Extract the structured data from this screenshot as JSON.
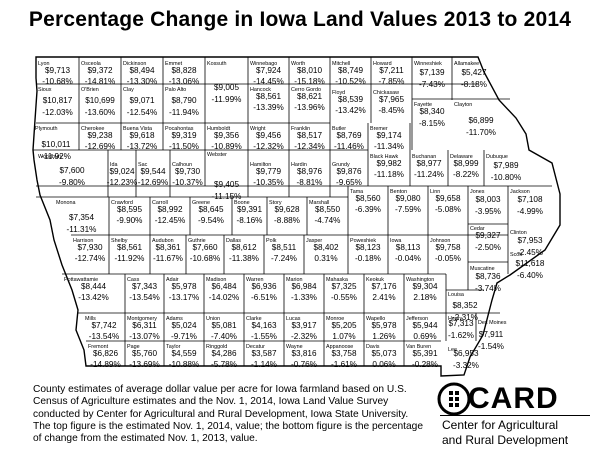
{
  "title": "Percentage Change in Iowa Land Values 2013 to 2014",
  "caption": "County estimates of average dollar value per acre for Iowa farmland based on U.S. Census of Agriculture estimates and the Nov. 1, 2014, Iowa Land Value Survey conducted by Center for Agricultural and Rural Development, Iowa State University. The top figure is the estimated Nov. 1, 2014, value; the bottom figure is the percentage of change from the estimated Nov. 1, 2013, value.",
  "logo": {
    "name": "CARD",
    "line1": "Center for Agricultural",
    "line2": "and Rural Development"
  },
  "counties": [
    {
      "name": "Lyon",
      "value": "$9,713",
      "change": "-10.68%"
    },
    {
      "name": "Osceola",
      "value": "$9,372",
      "change": "-14.81%"
    },
    {
      "name": "Dickinson",
      "value": "$8,494",
      "change": "-13.30%"
    },
    {
      "name": "Emmet",
      "value": "$8,828",
      "change": "-13.06%"
    },
    {
      "name": "Kossuth",
      "value": "$9,005",
      "change": "-11.99%"
    },
    {
      "name": "Winnebago",
      "value": "$7,924",
      "change": "-14.45%"
    },
    {
      "name": "Worth",
      "value": "$8,010",
      "change": "-15.18%"
    },
    {
      "name": "Mitchell",
      "value": "$8,749",
      "change": "-10.52%"
    },
    {
      "name": "Howard",
      "value": "$7,211",
      "change": "-7.85%"
    },
    {
      "name": "Winneshiek",
      "value": "$7,139",
      "change": "-7.43%"
    },
    {
      "name": "Allamakee",
      "value": "$5,427",
      "change": "-8.18%"
    },
    {
      "name": "Sioux",
      "value": "$10,817",
      "change": "-12.03%"
    },
    {
      "name": "O'Brien",
      "value": "$10,699",
      "change": "-13.60%"
    },
    {
      "name": "Clay",
      "value": "$9,071",
      "change": "-12.54%"
    },
    {
      "name": "Palo Alto",
      "value": "$8,790",
      "change": "-11.94%"
    },
    {
      "name": "Hancock",
      "value": "$8,561",
      "change": "-13.39%"
    },
    {
      "name": "Cerro Gordo",
      "value": "$8,621",
      "change": "-13.96%"
    },
    {
      "name": "Floyd",
      "value": "$8,539",
      "change": "-13.42%"
    },
    {
      "name": "Chickasaw",
      "value": "$7,965",
      "change": "-8.45%"
    },
    {
      "name": "Fayette",
      "value": "$8,340",
      "change": "-8.15%"
    },
    {
      "name": "Clayton",
      "value": "$6,899",
      "change": "-11.70%"
    },
    {
      "name": "Plymouth",
      "value": "$10,011",
      "change": "-11.92%"
    },
    {
      "name": "Cherokee",
      "value": "$9,238",
      "change": "-12.69%"
    },
    {
      "name": "Buena Vista",
      "value": "$9,618",
      "change": "-13.72%"
    },
    {
      "name": "Pocahontas",
      "value": "$9,319",
      "change": "-11.50%"
    },
    {
      "name": "Humboldt",
      "value": "$9,356",
      "change": "-10.89%"
    },
    {
      "name": "Wright",
      "value": "$9,456",
      "change": "-12.32%"
    },
    {
      "name": "Franklin",
      "value": "$8,517",
      "change": "-12.34%"
    },
    {
      "name": "Butler",
      "value": "$8,769",
      "change": "-11.46%"
    },
    {
      "name": "Bremer",
      "value": "$9,174",
      "change": "-11.34%"
    },
    {
      "name": "Black Hawk",
      "value": "$9,982",
      "change": "-11.18%"
    },
    {
      "name": "Buchanan",
      "value": "$8,977",
      "change": "-11.24%"
    },
    {
      "name": "Delaware",
      "value": "$8,999",
      "change": "-8.22%"
    },
    {
      "name": "Dubuque",
      "value": "$7,989",
      "change": "-10.80%"
    },
    {
      "name": "Woodbury",
      "value": "$7,600",
      "change": "-9.80%"
    },
    {
      "name": "Ida",
      "value": "$9,024",
      "change": "-12.23%"
    },
    {
      "name": "Sac",
      "value": "$9,544",
      "change": "-12.69%"
    },
    {
      "name": "Calhoun",
      "value": "$9,730",
      "change": "-10.37%"
    },
    {
      "name": "Webster",
      "value": "$9,405",
      "change": "-11.15%"
    },
    {
      "name": "Hamilton",
      "value": "$9,779",
      "change": "-10.35%"
    },
    {
      "name": "Hardin",
      "value": "$8,976",
      "change": "-8.81%"
    },
    {
      "name": "Grundy",
      "value": "$9,876",
      "change": "-9.65%"
    },
    {
      "name": "Monona",
      "value": "$7,354",
      "change": "-11.31%"
    },
    {
      "name": "Crawford",
      "value": "$8,595",
      "change": "-9.90%"
    },
    {
      "name": "Carroll",
      "value": "$8,992",
      "change": "-12.45%"
    },
    {
      "name": "Greene",
      "value": "$8,645",
      "change": "-9.54%"
    },
    {
      "name": "Boone",
      "value": "$9,391",
      "change": "-8.16%"
    },
    {
      "name": "Story",
      "value": "$9,628",
      "change": "-8.88%"
    },
    {
      "name": "Marshall",
      "value": "$8,550",
      "change": "-4.74%"
    },
    {
      "name": "Tama",
      "value": "$8,560",
      "change": "-6.39%"
    },
    {
      "name": "Benton",
      "value": "$9,080",
      "change": "-7.59%"
    },
    {
      "name": "Linn",
      "value": "$9,658",
      "change": "-5.08%"
    },
    {
      "name": "Jones",
      "value": "$8,003",
      "change": "-3.95%"
    },
    {
      "name": "Jackson",
      "value": "$7,108",
      "change": "-4.99%"
    },
    {
      "name": "Clinton",
      "value": "$7,953",
      "change": "-2.45%"
    },
    {
      "name": "Harrison",
      "value": "$7,930",
      "change": "-12.74%"
    },
    {
      "name": "Shelby",
      "value": "$8,561",
      "change": "-11.92%"
    },
    {
      "name": "Audubon",
      "value": "$8,361",
      "change": "-11.67%"
    },
    {
      "name": "Guthrie",
      "value": "$7,660",
      "change": "-10.68%"
    },
    {
      "name": "Dallas",
      "value": "$8,612",
      "change": "-11.38%"
    },
    {
      "name": "Polk",
      "value": "$8,511",
      "change": "-7.24%"
    },
    {
      "name": "Jasper",
      "value": "$8,402",
      "change": "0.31%"
    },
    {
      "name": "Poweshiek",
      "value": "$8,123",
      "change": "-0.18%"
    },
    {
      "name": "Iowa",
      "value": "$8,113",
      "change": "-0.04%"
    },
    {
      "name": "Johnson",
      "value": "$9,758",
      "change": "-0.05%"
    },
    {
      "name": "Cedar",
      "value": "$9,327",
      "change": "-2.50%"
    },
    {
      "name": "Scott",
      "value": "$11,618",
      "change": "-6.40%"
    },
    {
      "name": "Muscatine",
      "value": "$8,736",
      "change": "-3.74%"
    },
    {
      "name": "Pottawattamie",
      "value": "$8,444",
      "change": "-13.42%"
    },
    {
      "name": "Cass",
      "value": "$7,343",
      "change": "-13.54%"
    },
    {
      "name": "Adair",
      "value": "$5,978",
      "change": "-13.17%"
    },
    {
      "name": "Madison",
      "value": "$6,484",
      "change": "-14.02%"
    },
    {
      "name": "Warren",
      "value": "$6,936",
      "change": "-6.51%"
    },
    {
      "name": "Marion",
      "value": "$6,984",
      "change": "-1.33%"
    },
    {
      "name": "Mahaska",
      "value": "$7,325",
      "change": "-0.55%"
    },
    {
      "name": "Keokuk",
      "value": "$7,176",
      "change": "2.41%"
    },
    {
      "name": "Washington",
      "value": "$9,304",
      "change": "2.18%"
    },
    {
      "name": "Louisa",
      "value": "$8,352",
      "change": "-2.31%"
    },
    {
      "name": "Mills",
      "value": "$7,742",
      "change": "-13.54%"
    },
    {
      "name": "Montgomery",
      "value": "$6,311",
      "change": "-13.07%"
    },
    {
      "name": "Adams",
      "value": "$5,024",
      "change": "-9.71%"
    },
    {
      "name": "Union",
      "value": "$5,081",
      "change": "-7.40%"
    },
    {
      "name": "Clarke",
      "value": "$4,163",
      "change": "-1.55%"
    },
    {
      "name": "Lucas",
      "value": "$3,917",
      "change": "-2.32%"
    },
    {
      "name": "Monroe",
      "value": "$5,205",
      "change": "1.07%"
    },
    {
      "name": "Wapello",
      "value": "$5,978",
      "change": "1.26%"
    },
    {
      "name": "Jefferson",
      "value": "$5,944",
      "change": "0.69%"
    },
    {
      "name": "Henry",
      "value": "$7,313",
      "change": "-1.62%"
    },
    {
      "name": "Des Moines",
      "value": "$7,911",
      "change": "-1.54%"
    },
    {
      "name": "Fremont",
      "value": "$6,826",
      "change": "-14.89%"
    },
    {
      "name": "Page",
      "value": "$5,760",
      "change": "-13.69%"
    },
    {
      "name": "Taylor",
      "value": "$4,559",
      "change": "-10.88%"
    },
    {
      "name": "Ringgold",
      "value": "$4,286",
      "change": "-5.78%"
    },
    {
      "name": "Decatur",
      "value": "$3,587",
      "change": "-1.14%"
    },
    {
      "name": "Wayne",
      "value": "$3,816",
      "change": "-0.76%"
    },
    {
      "name": "Appanoose",
      "value": "$3,758",
      "change": "-1.61%"
    },
    {
      "name": "Davis",
      "value": "$5,073",
      "change": "0.06%"
    },
    {
      "name": "Van Buren",
      "value": "$5,391",
      "change": "-0.28%"
    },
    {
      "name": "Lee",
      "value": "$6,953",
      "change": "-3.32%"
    }
  ]
}
